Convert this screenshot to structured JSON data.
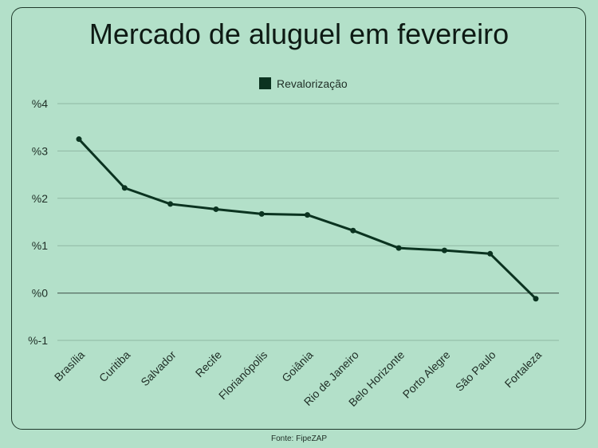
{
  "chart_data": {
    "type": "line",
    "title": "Mercado de aluguel em fevereiro",
    "source": "Fonte: FipeZAP",
    "categories": [
      "Brasília",
      "Curitiba",
      "Salvador",
      "Recife",
      "Florianópolis",
      "Goiânia",
      "Rio de Janeiro",
      "Belo Horizonte",
      "Porto Alegre",
      "São Paulo",
      "Fortaleza"
    ],
    "series": [
      {
        "name": "Revalorização",
        "values": [
          3.25,
          2.22,
          1.88,
          1.77,
          1.67,
          1.65,
          1.32,
          0.95,
          0.9,
          0.83,
          -0.12
        ],
        "color": "#0b3320"
      }
    ],
    "y_ticks": [
      {
        "value": 4,
        "label": "%4"
      },
      {
        "value": 3,
        "label": "%3"
      },
      {
        "value": 2,
        "label": "%2"
      },
      {
        "value": 1,
        "label": "%1"
      },
      {
        "value": 0,
        "label": "%0"
      },
      {
        "value": -1,
        "label": "%-1"
      }
    ],
    "ylim": [
      -1,
      4
    ],
    "grid": true,
    "legend_position": "top-center"
  }
}
